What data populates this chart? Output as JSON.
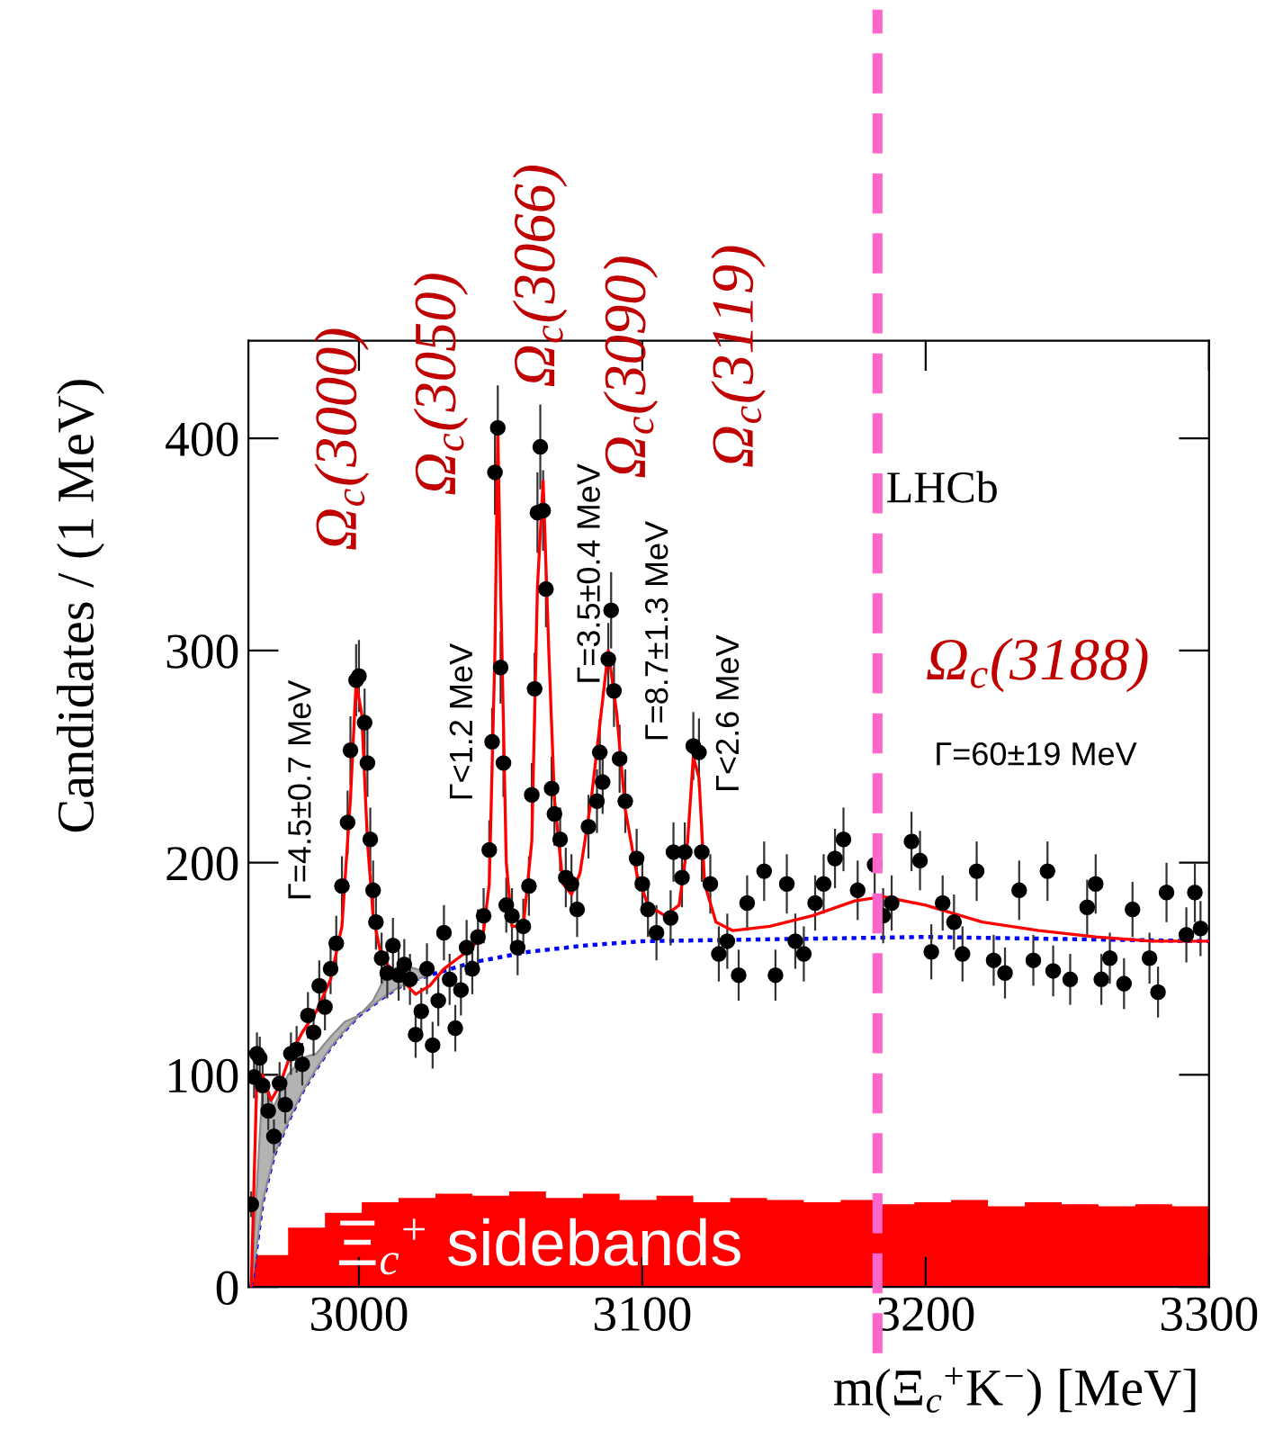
{
  "chart_data": {
    "type": "scatter",
    "ylabel": "Candidates / (1 MeV)",
    "xlabel": "m(Ξ$_{c}$$^{+}$K$^{−}$) [MeV]",
    "xlim": [
      2961,
      3300
    ],
    "xticks": [
      3000,
      3100,
      3200,
      3300
    ],
    "ylim": [
      0,
      446
    ],
    "yticks": [
      0,
      100,
      200,
      300,
      400
    ],
    "grid": false,
    "series": [
      {
        "type": "histogram",
        "color": "#ff0000",
        "bins": [
          2962,
          2975,
          2988,
          3001,
          3014,
          3027,
          3040,
          3053,
          3066,
          3079,
          3092,
          3105,
          3118,
          3131,
          3144,
          3157,
          3170,
          3183,
          3196,
          3209,
          3222,
          3235,
          3248,
          3261,
          3274,
          3287,
          3300
        ],
        "values": [
          15,
          28,
          35,
          40,
          42,
          44,
          43,
          45,
          42,
          44,
          41,
          43,
          40,
          42,
          41,
          40,
          41,
          39,
          40,
          41,
          38,
          40,
          39,
          38,
          39,
          38
        ]
      },
      {
        "type": "line",
        "color": "#0000ff",
        "line_style": "dotted",
        "x": [
          2962,
          2966,
          2970,
          2975,
          2980,
          2985,
          2990,
          2995,
          3000,
          3005,
          3010,
          3015,
          3020,
          3025,
          3040,
          3060,
          3080,
          3100,
          3150,
          3200,
          3300
        ],
        "values": [
          0,
          40,
          62,
          78,
          92,
          103,
          113,
          121,
          128,
          133,
          138,
          142,
          145,
          147,
          153,
          158,
          161,
          163,
          164,
          165,
          163
        ],
        "lower": [
          0,
          40,
          62,
          78,
          92,
          103,
          113,
          121,
          128,
          133,
          138,
          142,
          145,
          147,
          null,
          null,
          null,
          null,
          null,
          null,
          null
        ],
        "upper": [
          0,
          95,
          85,
          100,
          108,
          110,
          118,
          125,
          128,
          135,
          148,
          152,
          150,
          148,
          null,
          null,
          null,
          null,
          null,
          null,
          null
        ]
      },
      {
        "type": "line",
        "color": "#ff0000",
        "line_style": "solid",
        "x": [
          2962,
          2964,
          2966,
          2969,
          2972,
          2976,
          2980,
          2985,
          2990,
          2994,
          2997,
          2999,
          3001,
          3003,
          3005,
          3008,
          3015,
          3020,
          3025,
          3030,
          3035,
          3040,
          3044,
          3046,
          3048,
          3049,
          3050,
          3052,
          3054,
          3058,
          3061,
          3063,
          3065,
          3067,
          3069,
          3072,
          3075,
          3078,
          3082,
          3085,
          3088,
          3091,
          3094,
          3098,
          3102,
          3108,
          3113,
          3116,
          3118,
          3120,
          3122,
          3126,
          3132,
          3145,
          3160,
          3175,
          3185,
          3200,
          3220,
          3240,
          3260,
          3280,
          3300
        ],
        "values": [
          0,
          100,
          100,
          88,
          95,
          110,
          120,
          130,
          145,
          170,
          230,
          285,
          270,
          210,
          175,
          155,
          145,
          138,
          142,
          150,
          155,
          160,
          168,
          190,
          300,
          405,
          330,
          200,
          170,
          170,
          210,
          330,
          380,
          300,
          230,
          190,
          185,
          195,
          230,
          265,
          300,
          270,
          225,
          195,
          180,
          175,
          180,
          210,
          250,
          240,
          190,
          172,
          168,
          170,
          175,
          182,
          184,
          180,
          172,
          168,
          165,
          163,
          163
        ]
      },
      {
        "color": "#000000",
        "marker": "circle",
        "x": [
          2962,
          2963,
          2964,
          2965,
          2966,
          2968,
          2970,
          2972,
          2974,
          2976,
          2978,
          2980,
          2982,
          2984,
          2986,
          2988,
          2990,
          2992,
          2994,
          2996,
          2997,
          2999,
          3000,
          3002,
          3003,
          3004,
          3005,
          3006,
          3008,
          3010,
          3012,
          3014,
          3016,
          3018,
          3020,
          3022,
          3024,
          3026,
          3028,
          3030,
          3032,
          3034,
          3036,
          3038,
          3040,
          3042,
          3044,
          3046,
          3047,
          3048,
          3049,
          3050,
          3051,
          3052,
          3054,
          3056,
          3058,
          3060,
          3061,
          3062,
          3063,
          3064,
          3065,
          3066,
          3068,
          3069,
          3071,
          3073,
          3075,
          3077,
          3081,
          3084,
          3085,
          3086,
          3088,
          3089,
          3090,
          3092,
          3094,
          3098,
          3100,
          3102,
          3105,
          3110,
          3111,
          3114,
          3115,
          3118,
          3120,
          3121,
          3124,
          3127,
          3130,
          3134,
          3137,
          3143,
          3147,
          3151,
          3154,
          3157,
          3161,
          3164,
          3168,
          3171,
          3176,
          3182,
          3185,
          3188,
          3195,
          3198,
          3202,
          3206,
          3210,
          3213,
          3218,
          3224,
          3228,
          3233,
          3238,
          3243,
          3245,
          3251,
          3257,
          3260,
          3262,
          3265,
          3270,
          3273,
          3279,
          3282,
          3285,
          3292,
          3295,
          3297
        ],
        "values": [
          39,
          99,
          110,
          108,
          95,
          83,
          71,
          96,
          86,
          110,
          112,
          105,
          128,
          120,
          142,
          132,
          150,
          162,
          189,
          219,
          253,
          286,
          288,
          266,
          247,
          211,
          187,
          172,
          155,
          148,
          161,
          147,
          152,
          145,
          119,
          130,
          150,
          114,
          135,
          167,
          145,
          122,
          140,
          160,
          150,
          165,
          175,
          206,
          257,
          384,
          405,
          292,
          247,
          180,
          175,
          160,
          170,
          189,
          232,
          282,
          365,
          396,
          366,
          329,
          235,
          223,
          211,
          193,
          190,
          178,
          217,
          229,
          252,
          238,
          296,
          319,
          281,
          249,
          229,
          202,
          190,
          178,
          167,
          174,
          205,
          193,
          205,
          255,
          252,
          205,
          190,
          157,
          163,
          147,
          181,
          196,
          147,
          190,
          163,
          157,
          181,
          190,
          202,
          211,
          187,
          199,
          175,
          181,
          210,
          201,
          158,
          181,
          172,
          157,
          196,
          154,
          148,
          187,
          154,
          196,
          149,
          145,
          179,
          190,
          145,
          155,
          143,
          178,
          155,
          139,
          186,
          166,
          186,
          169
        ],
        "errors": [
          6,
          10,
          10,
          10,
          10,
          9,
          8,
          10,
          9,
          10,
          11,
          10,
          11,
          11,
          12,
          11,
          12,
          13,
          14,
          15,
          16,
          17,
          17,
          16,
          16,
          15,
          14,
          13,
          12,
          12,
          13,
          12,
          12,
          12,
          11,
          11,
          12,
          11,
          12,
          13,
          12,
          11,
          12,
          13,
          12,
          13,
          13,
          14,
          16,
          20,
          20,
          17,
          16,
          13,
          13,
          13,
          13,
          14,
          15,
          17,
          19,
          20,
          19,
          18,
          15,
          15,
          15,
          14,
          14,
          13,
          15,
          15,
          16,
          15,
          17,
          18,
          17,
          16,
          15,
          14,
          14,
          13,
          13,
          13,
          14,
          14,
          14,
          16,
          16,
          14,
          14,
          13,
          13,
          12,
          13,
          14,
          12,
          14,
          13,
          13,
          13,
          14,
          14,
          15,
          14,
          14,
          13,
          13,
          14,
          14,
          13,
          13,
          13,
          13,
          14,
          12,
          12,
          14,
          12,
          14,
          12,
          12,
          13,
          14,
          12,
          12,
          12,
          13,
          12,
          12,
          14,
          13,
          14,
          13
        ]
      }
    ],
    "ref_lines": [
      {
        "axis": "x",
        "value": 3183,
        "color": "#ff66cc",
        "line_style": "dashed"
      }
    ],
    "annotations": [
      {
        "text": "Ω$_{c}$(3000)",
        "x": 3000,
        "y": 288
      },
      {
        "text": "Ω$_{c}$(3050)",
        "x": 3049,
        "y": 405
      },
      {
        "text": "Ω$_{c}$(3066)",
        "x": 3064,
        "y": 396
      },
      {
        "text": "Ω$_{c}$(3090)",
        "x": 3089,
        "y": 319
      },
      "Ω$_{c}$(3119)",
      "Γ=4.5±0.7 MeV",
      "Γ<1.2 MeV",
      "Γ=3.5±0.4 MeV",
      "Γ=8.7±1.3 MeV",
      "Γ<2.6 MeV",
      "LHCb",
      "Ω$_{c}$(3188)",
      "Γ=60±19 MeV",
      "Ξ$_{c}$$^{+}$ sidebands"
    ]
  }
}
